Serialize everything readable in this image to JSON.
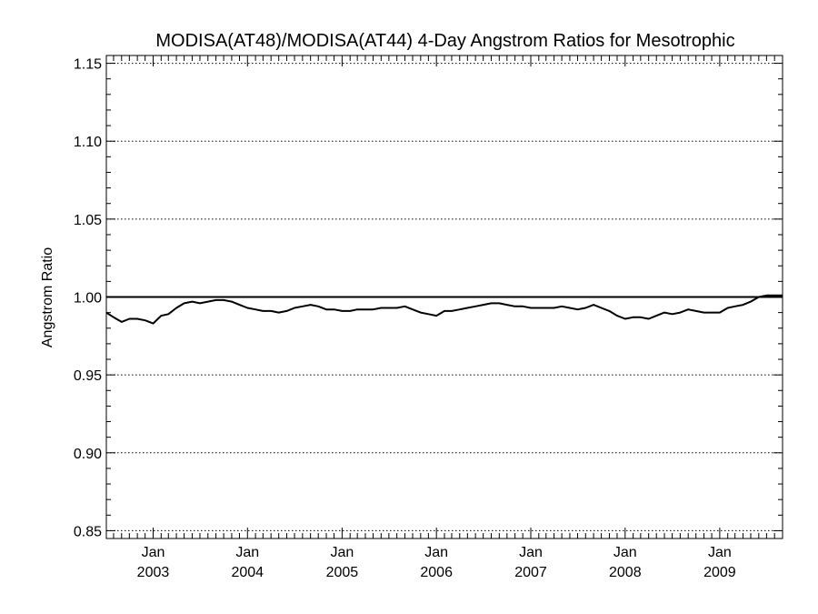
{
  "chart_data": {
    "type": "line",
    "title": "MODISA(AT48)/MODISA(AT44) 4-Day Angstrom Ratios for Mesotrophic",
    "xlabel": "",
    "ylabel": "Angstrom Ratio",
    "xlim": [
      "2002-07-04",
      "2009-09-01"
    ],
    "ylim": [
      0.845,
      1.155
    ],
    "y_ticks": [
      "0.85",
      "0.90",
      "0.95",
      "1.00",
      "1.05",
      "1.10",
      "1.15"
    ],
    "x_ticks": [
      {
        "month": "Jan",
        "year": "2003",
        "date": "2003-01-01"
      },
      {
        "month": "Jan",
        "year": "2004",
        "date": "2004-01-01"
      },
      {
        "month": "Jan",
        "year": "2005",
        "date": "2005-01-01"
      },
      {
        "month": "Jan",
        "year": "2006",
        "date": "2006-01-01"
      },
      {
        "month": "Jan",
        "year": "2007",
        "date": "2007-01-01"
      },
      {
        "month": "Jan",
        "year": "2008",
        "date": "2008-01-01"
      },
      {
        "month": "Jan",
        "year": "2009",
        "date": "2009-01-01"
      }
    ],
    "grid": "dotted horizontal at major y ticks",
    "reference_line": 1.0,
    "series": [
      {
        "x": [
          "2002-07-04",
          "2002-08-01",
          "2002-09-01",
          "2002-10-01",
          "2002-11-01",
          "2002-12-01",
          "2003-01-01",
          "2003-02-01",
          "2003-03-01",
          "2003-04-01",
          "2003-05-01",
          "2003-06-01",
          "2003-07-01",
          "2003-08-01",
          "2003-09-01",
          "2003-10-01",
          "2003-11-01",
          "2003-12-01",
          "2004-01-01",
          "2004-02-01",
          "2004-03-01",
          "2004-04-01",
          "2004-05-01",
          "2004-06-01",
          "2004-07-01",
          "2004-08-01",
          "2004-09-01",
          "2004-10-01",
          "2004-11-01",
          "2004-12-01",
          "2005-01-01",
          "2005-02-01",
          "2005-03-01",
          "2005-04-01",
          "2005-05-01",
          "2005-06-01",
          "2005-07-01",
          "2005-08-01",
          "2005-09-01",
          "2005-10-01",
          "2005-11-01",
          "2005-12-01",
          "2006-01-01",
          "2006-02-01",
          "2006-03-01",
          "2006-04-01",
          "2006-05-01",
          "2006-06-01",
          "2006-07-01",
          "2006-08-01",
          "2006-09-01",
          "2006-10-01",
          "2006-11-01",
          "2006-12-01",
          "2007-01-01",
          "2007-02-01",
          "2007-03-01",
          "2007-04-01",
          "2007-05-01",
          "2007-06-01",
          "2007-07-01",
          "2007-08-01",
          "2007-09-01",
          "2007-10-01",
          "2007-11-01",
          "2007-12-01",
          "2008-01-01",
          "2008-02-01",
          "2008-03-01",
          "2008-04-01",
          "2008-05-01",
          "2008-06-01",
          "2008-07-01",
          "2008-08-01",
          "2008-09-01",
          "2008-10-01",
          "2008-11-01",
          "2008-12-01",
          "2009-01-01",
          "2009-02-01",
          "2009-03-01",
          "2009-04-01",
          "2009-05-01",
          "2009-06-01",
          "2009-07-01",
          "2009-08-01",
          "2009-09-01"
        ],
        "y": [
          0.99,
          0.987,
          0.984,
          0.986,
          0.986,
          0.985,
          0.983,
          0.988,
          0.989,
          0.993,
          0.996,
          0.997,
          0.996,
          0.997,
          0.998,
          0.998,
          0.997,
          0.995,
          0.993,
          0.992,
          0.991,
          0.991,
          0.99,
          0.991,
          0.993,
          0.994,
          0.995,
          0.994,
          0.992,
          0.992,
          0.991,
          0.991,
          0.992,
          0.992,
          0.992,
          0.993,
          0.993,
          0.993,
          0.994,
          0.992,
          0.99,
          0.989,
          0.988,
          0.991,
          0.991,
          0.992,
          0.993,
          0.994,
          0.995,
          0.996,
          0.996,
          0.995,
          0.994,
          0.994,
          0.993,
          0.993,
          0.993,
          0.993,
          0.994,
          0.993,
          0.992,
          0.993,
          0.995,
          0.993,
          0.991,
          0.988,
          0.986,
          0.987,
          0.987,
          0.986,
          0.988,
          0.99,
          0.989,
          0.99,
          0.992,
          0.991,
          0.99,
          0.99,
          0.99,
          0.993,
          0.994,
          0.995,
          0.997,
          1.0,
          1.001,
          1.001,
          1.001
        ]
      }
    ]
  }
}
